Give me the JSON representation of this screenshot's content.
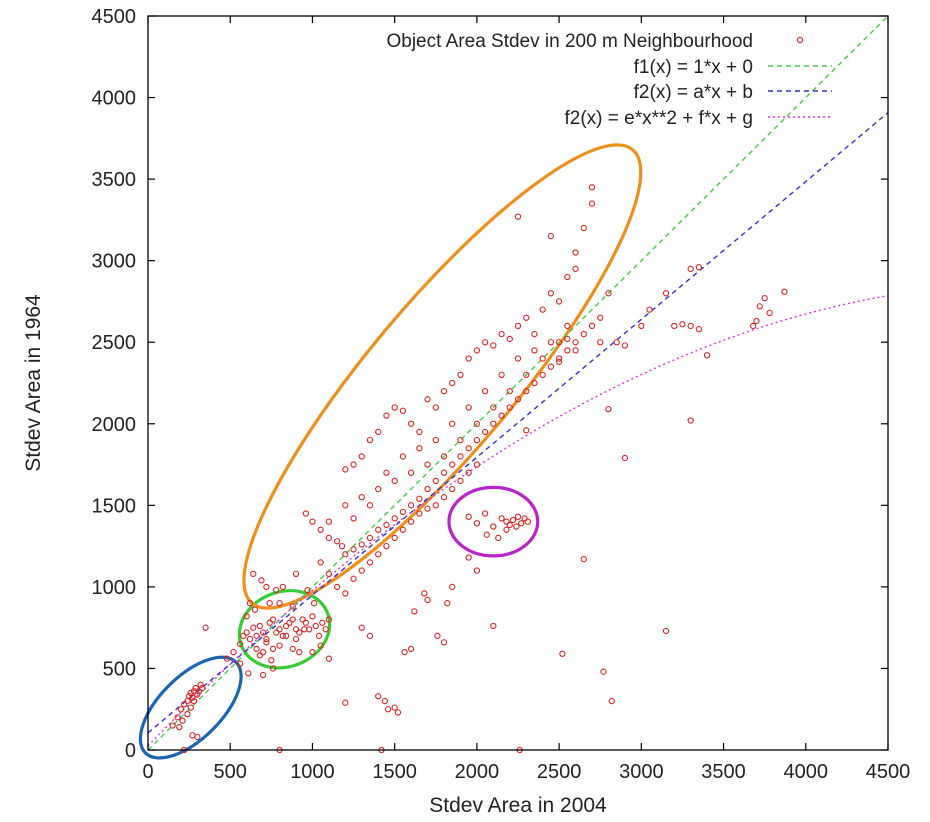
{
  "chart_data": {
    "type": "scatter",
    "xlabel": "Stdev Area in 2004",
    "ylabel": "Stdev Area in 1964",
    "xlim": [
      0,
      4500
    ],
    "ylim": [
      0,
      4500
    ],
    "xticks": [
      0,
      500,
      1000,
      1500,
      2000,
      2500,
      3000,
      3500,
      4000,
      4500
    ],
    "yticks": [
      0,
      500,
      1000,
      1500,
      2000,
      2500,
      3000,
      3500,
      4000,
      4500
    ],
    "grid": false,
    "legend_position": "top-right",
    "series": [
      {
        "name": "Object Area Stdev in 200 m Neighbourhood",
        "style": "points",
        "color": "#dd2222",
        "points": [
          [
            150,
            150
          ],
          [
            180,
            200
          ],
          [
            200,
            250
          ],
          [
            220,
            280
          ],
          [
            240,
            300
          ],
          [
            250,
            330
          ],
          [
            260,
            350
          ],
          [
            270,
            320
          ],
          [
            280,
            360
          ],
          [
            290,
            380
          ],
          [
            300,
            340
          ],
          [
            310,
            360
          ],
          [
            320,
            400
          ],
          [
            330,
            380
          ],
          [
            280,
            300
          ],
          [
            260,
            260
          ],
          [
            240,
            220
          ],
          [
            210,
            180
          ],
          [
            190,
            140
          ],
          [
            300,
            80
          ],
          [
            270,
            90
          ],
          [
            220,
            0
          ],
          [
            350,
            750
          ],
          [
            480,
            560
          ],
          [
            520,
            600
          ],
          [
            560,
            650
          ],
          [
            580,
            700
          ],
          [
            600,
            720
          ],
          [
            620,
            680
          ],
          [
            640,
            750
          ],
          [
            660,
            700
          ],
          [
            680,
            760
          ],
          [
            700,
            720
          ],
          [
            720,
            680
          ],
          [
            740,
            780
          ],
          [
            760,
            800
          ],
          [
            780,
            720
          ],
          [
            800,
            740
          ],
          [
            820,
            700
          ],
          [
            840,
            760
          ],
          [
            860,
            780
          ],
          [
            880,
            800
          ],
          [
            900,
            740
          ],
          [
            920,
            720
          ],
          [
            940,
            800
          ],
          [
            960,
            780
          ],
          [
            980,
            740
          ],
          [
            1000,
            820
          ],
          [
            1020,
            760
          ],
          [
            1040,
            700
          ],
          [
            1060,
            780
          ],
          [
            1080,
            740
          ],
          [
            1100,
            800
          ],
          [
            620,
            900
          ],
          [
            700,
            600
          ],
          [
            750,
            550
          ],
          [
            800,
            640
          ],
          [
            660,
            620
          ],
          [
            720,
            660
          ],
          [
            680,
            580
          ],
          [
            760,
            620
          ],
          [
            600,
            820
          ],
          [
            650,
            860
          ],
          [
            720,
            1000
          ],
          [
            780,
            980
          ],
          [
            840,
            700
          ],
          [
            900,
            680
          ],
          [
            950,
            740
          ],
          [
            1000,
            600
          ],
          [
            1050,
            640
          ],
          [
            1100,
            560
          ],
          [
            640,
            1080
          ],
          [
            690,
            1040
          ],
          [
            740,
            900
          ],
          [
            800,
            900
          ],
          [
            880,
            880
          ],
          [
            970,
            980
          ],
          [
            1010,
            900
          ],
          [
            820,
            1000
          ],
          [
            900,
            1080
          ],
          [
            560,
            530
          ],
          [
            610,
            470
          ],
          [
            700,
            460
          ],
          [
            760,
            500
          ],
          [
            880,
            620
          ],
          [
            920,
            600
          ],
          [
            960,
            1450
          ],
          [
            1000,
            1400
          ],
          [
            1050,
            1350
          ],
          [
            1100,
            1300
          ],
          [
            1150,
            1280
          ],
          [
            1180,
            1250
          ],
          [
            1200,
            1200
          ],
          [
            1250,
            1230
          ],
          [
            1300,
            1260
          ],
          [
            1350,
            1300
          ],
          [
            1400,
            1350
          ],
          [
            1450,
            1380
          ],
          [
            1500,
            1420
          ],
          [
            1550,
            1460
          ],
          [
            1600,
            1500
          ],
          [
            1650,
            1540
          ],
          [
            1700,
            1600
          ],
          [
            1750,
            1650
          ],
          [
            1800,
            1700
          ],
          [
            1850,
            1750
          ],
          [
            1900,
            1800
          ],
          [
            1950,
            1850
          ],
          [
            2000,
            1900
          ],
          [
            2050,
            1950
          ],
          [
            2100,
            2000
          ],
          [
            2150,
            2050
          ],
          [
            2200,
            2100
          ],
          [
            2250,
            2150
          ],
          [
            2300,
            2200
          ],
          [
            2350,
            2250
          ],
          [
            2400,
            2300
          ],
          [
            2450,
            2350
          ],
          [
            2500,
            2400
          ],
          [
            2550,
            2450
          ],
          [
            2600,
            2500
          ],
          [
            2650,
            2550
          ],
          [
            2700,
            2600
          ],
          [
            2750,
            2650
          ],
          [
            1200,
            1720
          ],
          [
            1250,
            1750
          ],
          [
            1300,
            1800
          ],
          [
            1350,
            1900
          ],
          [
            1400,
            1950
          ],
          [
            1450,
            2050
          ],
          [
            1500,
            2100
          ],
          [
            1550,
            2080
          ],
          [
            1600,
            2000
          ],
          [
            1650,
            1950
          ],
          [
            1700,
            2150
          ],
          [
            1750,
            2100
          ],
          [
            1800,
            2200
          ],
          [
            1850,
            2250
          ],
          [
            1900,
            2300
          ],
          [
            1950,
            2400
          ],
          [
            2000,
            2450
          ],
          [
            2050,
            2500
          ],
          [
            2100,
            2480
          ],
          [
            2150,
            2550
          ],
          [
            2200,
            2520
          ],
          [
            2250,
            2600
          ],
          [
            2300,
            2650
          ],
          [
            2350,
            2550
          ],
          [
            2400,
            2700
          ],
          [
            2450,
            2800
          ],
          [
            2500,
            2750
          ],
          [
            2550,
            2900
          ],
          [
            2600,
            2950
          ],
          [
            2650,
            3200
          ],
          [
            2700,
            3350
          ],
          [
            2700,
            3450
          ],
          [
            2250,
            3270
          ],
          [
            2450,
            3150
          ],
          [
            2600,
            3050
          ],
          [
            2800,
            2800
          ],
          [
            2850,
            2500
          ],
          [
            1050,
            1150
          ],
          [
            1100,
            1080
          ],
          [
            1150,
            1000
          ],
          [
            1200,
            960
          ],
          [
            1250,
            1050
          ],
          [
            1300,
            1100
          ],
          [
            1350,
            1150
          ],
          [
            1400,
            1200
          ],
          [
            1450,
            1250
          ],
          [
            1500,
            1300
          ],
          [
            1550,
            1350
          ],
          [
            1600,
            1400
          ],
          [
            1650,
            1450
          ],
          [
            1700,
            1480
          ],
          [
            1750,
            1500
          ],
          [
            1800,
            1550
          ],
          [
            1850,
            1600
          ],
          [
            1900,
            1650
          ],
          [
            1950,
            1700
          ],
          [
            2000,
            1750
          ],
          [
            1100,
            1400
          ],
          [
            1200,
            1500
          ],
          [
            1300,
            1550
          ],
          [
            1400,
            1600
          ],
          [
            1500,
            1650
          ],
          [
            1600,
            1700
          ],
          [
            1700,
            1750
          ],
          [
            1800,
            1800
          ],
          [
            1900,
            1900
          ],
          [
            2000,
            2000
          ],
          [
            2100,
            2100
          ],
          [
            2200,
            2200
          ],
          [
            2300,
            2300
          ],
          [
            2400,
            2400
          ],
          [
            2500,
            2500
          ],
          [
            1250,
            1420
          ],
          [
            1350,
            1500
          ],
          [
            1450,
            1700
          ],
          [
            1550,
            1800
          ],
          [
            1650,
            1850
          ],
          [
            1750,
            1900
          ],
          [
            1850,
            2000
          ],
          [
            1950,
            2100
          ],
          [
            2050,
            2200
          ],
          [
            2150,
            2300
          ],
          [
            2250,
            2400
          ],
          [
            2350,
            2450
          ],
          [
            2450,
            2500
          ],
          [
            2550,
            2600
          ],
          [
            1950,
            1430
          ],
          [
            2000,
            1390
          ],
          [
            2050,
            1450
          ],
          [
            2100,
            1370
          ],
          [
            2150,
            1420
          ],
          [
            2180,
            1400
          ],
          [
            2200,
            1380
          ],
          [
            2220,
            1410
          ],
          [
            2250,
            1430
          ],
          [
            2270,
            1390
          ],
          [
            2290,
            1420
          ],
          [
            2310,
            1400
          ],
          [
            2060,
            1320
          ],
          [
            2130,
            1300
          ],
          [
            2240,
            1370
          ],
          [
            1200,
            290
          ],
          [
            1300,
            750
          ],
          [
            1350,
            700
          ],
          [
            1400,
            330
          ],
          [
            1440,
            300
          ],
          [
            1460,
            250
          ],
          [
            1500,
            260
          ],
          [
            1520,
            230
          ],
          [
            1560,
            600
          ],
          [
            1600,
            620
          ],
          [
            1620,
            850
          ],
          [
            1680,
            960
          ],
          [
            1700,
            920
          ],
          [
            1760,
            700
          ],
          [
            1800,
            660
          ],
          [
            1820,
            900
          ],
          [
            1850,
            1000
          ],
          [
            1950,
            1180
          ],
          [
            2000,
            1100
          ],
          [
            2100,
            760
          ],
          [
            2180,
            1350
          ],
          [
            2260,
            0
          ],
          [
            2300,
            1960
          ],
          [
            2520,
            590
          ],
          [
            2650,
            1170
          ],
          [
            2770,
            480
          ],
          [
            2820,
            300
          ],
          [
            2900,
            1790
          ],
          [
            2800,
            2090
          ],
          [
            2550,
            2520
          ],
          [
            2600,
            2450
          ],
          [
            2500,
            2380
          ],
          [
            2750,
            2500
          ],
          [
            2900,
            2480
          ],
          [
            3000,
            2600
          ],
          [
            3050,
            2700
          ],
          [
            3150,
            2800
          ],
          [
            3150,
            730
          ],
          [
            3200,
            2600
          ],
          [
            3250,
            2610
          ],
          [
            3300,
            2600
          ],
          [
            3300,
            2020
          ],
          [
            3350,
            2580
          ],
          [
            3300,
            2950
          ],
          [
            3350,
            2960
          ],
          [
            3400,
            2420
          ],
          [
            3680,
            2600
          ],
          [
            3700,
            2630
          ],
          [
            3720,
            2720
          ],
          [
            3750,
            2770
          ],
          [
            3780,
            2680
          ],
          [
            3870,
            2810
          ],
          [
            1420,
            0
          ],
          [
            800,
            0
          ]
        ]
      },
      {
        "name": "f1(x) = 1*x + 0",
        "style": "dashed",
        "color": "#44cc44",
        "a": 1,
        "b": 0
      },
      {
        "name": "f2(x) = a*x + b",
        "style": "dashed",
        "color": "#3333cc",
        "a": 0.845,
        "b": 105
      },
      {
        "name": "f2(x) = e*x**2 + f*x + g",
        "style": "dotted",
        "color": "#dd33dd",
        "e": -9.7e-05,
        "f": 1.05,
        "g": 25,
        "x_from": 0,
        "x_to": 4500
      }
    ],
    "ellipses": [
      {
        "color": "#1a64b4",
        "cx": 260,
        "cy": 260,
        "rx": 390,
        "ry": 190,
        "angle_deg": 45
      },
      {
        "color": "#33cc33",
        "cx": 830,
        "cy": 740,
        "rx": 280,
        "ry": 230,
        "angle_deg": 20
      },
      {
        "color": "#ee8f1c",
        "cx": 1790,
        "cy": 2290,
        "rx": 1800,
        "ry": 450,
        "angle_deg": 50
      },
      {
        "color": "#bb22cc",
        "cx": 2100,
        "cy": 1400,
        "rx": 270,
        "ry": 210,
        "angle_deg": 0
      }
    ]
  }
}
